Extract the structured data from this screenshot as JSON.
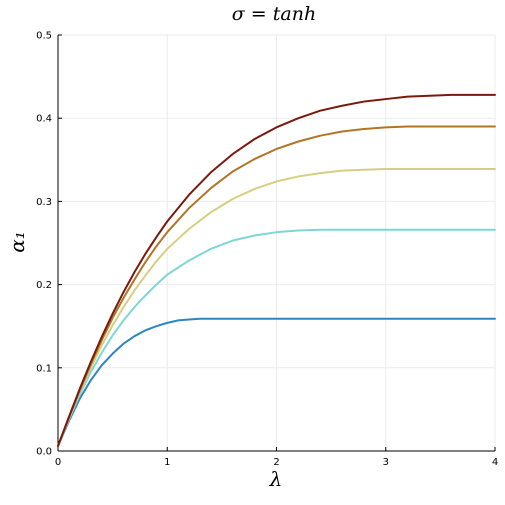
{
  "chart_data": {
    "type": "line",
    "title": "σ = tanh",
    "xlabel": "λ",
    "ylabel": "α₁",
    "xlim": [
      0,
      4
    ],
    "ylim": [
      0,
      0.5
    ],
    "xticks": [
      "0",
      "1",
      "2",
      "3",
      "4"
    ],
    "yticks": [
      "0.0",
      "0.1",
      "0.2",
      "0.3",
      "0.4",
      "0.5"
    ],
    "grid": true,
    "series": [
      {
        "color": "#2e86bf",
        "x": [
          0,
          0.1,
          0.2,
          0.3,
          0.4,
          0.5,
          0.6,
          0.7,
          0.8,
          0.9,
          1.0,
          1.1,
          1.2,
          1.3,
          1.4,
          1.6,
          2.0,
          2.5,
          3.0,
          3.5,
          4.0
        ],
        "y": [
          0.006,
          0.036,
          0.063,
          0.085,
          0.103,
          0.117,
          0.129,
          0.138,
          0.145,
          0.15,
          0.154,
          0.157,
          0.158,
          0.159,
          0.159,
          0.159,
          0.159,
          0.159,
          0.159,
          0.159,
          0.159
        ]
      },
      {
        "color": "#7fd6d6",
        "x": [
          0,
          0.1,
          0.2,
          0.3,
          0.4,
          0.5,
          0.6,
          0.7,
          0.8,
          0.9,
          1.0,
          1.2,
          1.4,
          1.6,
          1.8,
          2.0,
          2.2,
          2.4,
          3.0,
          3.5,
          4.0
        ],
        "y": [
          0.006,
          0.038,
          0.068,
          0.095,
          0.118,
          0.139,
          0.157,
          0.173,
          0.187,
          0.2,
          0.212,
          0.229,
          0.243,
          0.253,
          0.259,
          0.263,
          0.265,
          0.266,
          0.266,
          0.266,
          0.266
        ]
      },
      {
        "color": "#d6cf82",
        "x": [
          0,
          0.1,
          0.2,
          0.3,
          0.4,
          0.5,
          0.6,
          0.7,
          0.8,
          0.9,
          1.0,
          1.2,
          1.4,
          1.6,
          1.8,
          2.0,
          2.2,
          2.4,
          2.6,
          2.8,
          3.0,
          3.5,
          4.0
        ],
        "y": [
          0.006,
          0.039,
          0.071,
          0.1,
          0.127,
          0.151,
          0.173,
          0.193,
          0.211,
          0.228,
          0.243,
          0.267,
          0.287,
          0.303,
          0.315,
          0.324,
          0.33,
          0.334,
          0.337,
          0.338,
          0.339,
          0.339,
          0.339
        ]
      },
      {
        "color": "#b27525",
        "x": [
          0,
          0.1,
          0.2,
          0.3,
          0.4,
          0.5,
          0.6,
          0.7,
          0.8,
          0.9,
          1.0,
          1.2,
          1.4,
          1.6,
          1.8,
          2.0,
          2.2,
          2.4,
          2.6,
          2.8,
          3.0,
          3.2,
          3.5,
          4.0
        ],
        "y": [
          0.006,
          0.04,
          0.073,
          0.104,
          0.133,
          0.16,
          0.184,
          0.206,
          0.227,
          0.246,
          0.263,
          0.292,
          0.316,
          0.336,
          0.351,
          0.363,
          0.372,
          0.379,
          0.384,
          0.387,
          0.389,
          0.39,
          0.39,
          0.39
        ]
      },
      {
        "color": "#7a1a0c",
        "x": [
          0,
          0.1,
          0.2,
          0.3,
          0.4,
          0.5,
          0.6,
          0.7,
          0.8,
          0.9,
          1.0,
          1.2,
          1.4,
          1.6,
          1.8,
          2.0,
          2.2,
          2.4,
          2.6,
          2.8,
          3.0,
          3.2,
          3.4,
          3.6,
          4.0
        ],
        "y": [
          0.006,
          0.041,
          0.075,
          0.107,
          0.137,
          0.165,
          0.191,
          0.215,
          0.237,
          0.257,
          0.276,
          0.308,
          0.335,
          0.357,
          0.375,
          0.389,
          0.4,
          0.409,
          0.415,
          0.42,
          0.423,
          0.426,
          0.427,
          0.428,
          0.428
        ]
      }
    ]
  }
}
